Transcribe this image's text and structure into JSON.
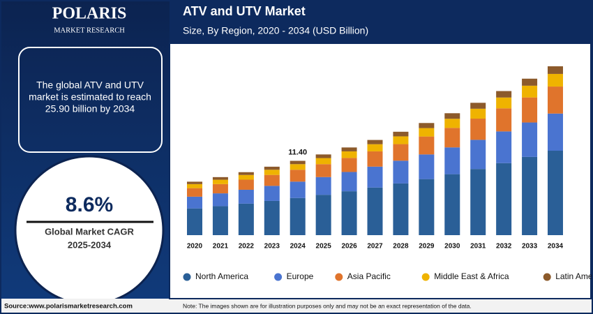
{
  "logo": {
    "name": "POLARIS",
    "tagline": "MARKET RESEARCH"
  },
  "summary": {
    "lines": [
      "The global ATV and UTV",
      "market is estimated to reach",
      "25.90 billion by 2034"
    ]
  },
  "cagr": {
    "value": "8.6%",
    "label": "Global Market CAGR",
    "period": "2025-2034"
  },
  "footer": {
    "source": "Source:www.polarismarketresearch.com",
    "note": "Note: The images shown are for illustration purposes only and may not be an exact representation of the data."
  },
  "chart_data": {
    "type": "stacked_bar",
    "title": "ATV and UTV Market",
    "subtitle": "Size, By Region, 2020 - 2034 (USD Billion)",
    "categories": [
      "2020",
      "2021",
      "2022",
      "2023",
      "2024",
      "2025",
      "2026",
      "2027",
      "2028",
      "2029",
      "2030",
      "2031",
      "2032",
      "2033",
      "2034"
    ],
    "series": [
      {
        "name": "North America",
        "color": "#2a5f97",
        "values": [
          4.1,
          4.45,
          4.83,
          5.25,
          5.7,
          6.19,
          6.73,
          7.3,
          7.93,
          8.6,
          9.35,
          10.15,
          11.05,
          12.0,
          12.95
        ]
      },
      {
        "name": "Europe",
        "color": "#4a74d0",
        "values": [
          1.8,
          1.96,
          2.13,
          2.31,
          2.51,
          2.72,
          2.96,
          3.21,
          3.49,
          3.78,
          4.11,
          4.47,
          4.86,
          5.28,
          5.7
        ]
      },
      {
        "name": "Asia Pacific",
        "color": "#e0742c",
        "values": [
          1.31,
          1.42,
          1.55,
          1.68,
          1.82,
          1.98,
          2.15,
          2.34,
          2.54,
          2.75,
          2.99,
          3.25,
          3.54,
          3.84,
          4.14
        ]
      },
      {
        "name": "Middle East & Africa",
        "color": "#efb300",
        "values": [
          0.62,
          0.67,
          0.72,
          0.79,
          0.86,
          0.93,
          1.01,
          1.1,
          1.19,
          1.29,
          1.4,
          1.52,
          1.66,
          1.8,
          1.94
        ]
      },
      {
        "name": "Latin America",
        "color": "#8c5a2b",
        "values": [
          0.37,
          0.4,
          0.43,
          0.47,
          0.51,
          0.56,
          0.6,
          0.65,
          0.71,
          0.78,
          0.85,
          0.91,
          0.99,
          1.08,
          1.17
        ]
      }
    ],
    "annotations": [
      {
        "x": "2024",
        "text": "11.40"
      }
    ],
    "legend": "bottom"
  }
}
